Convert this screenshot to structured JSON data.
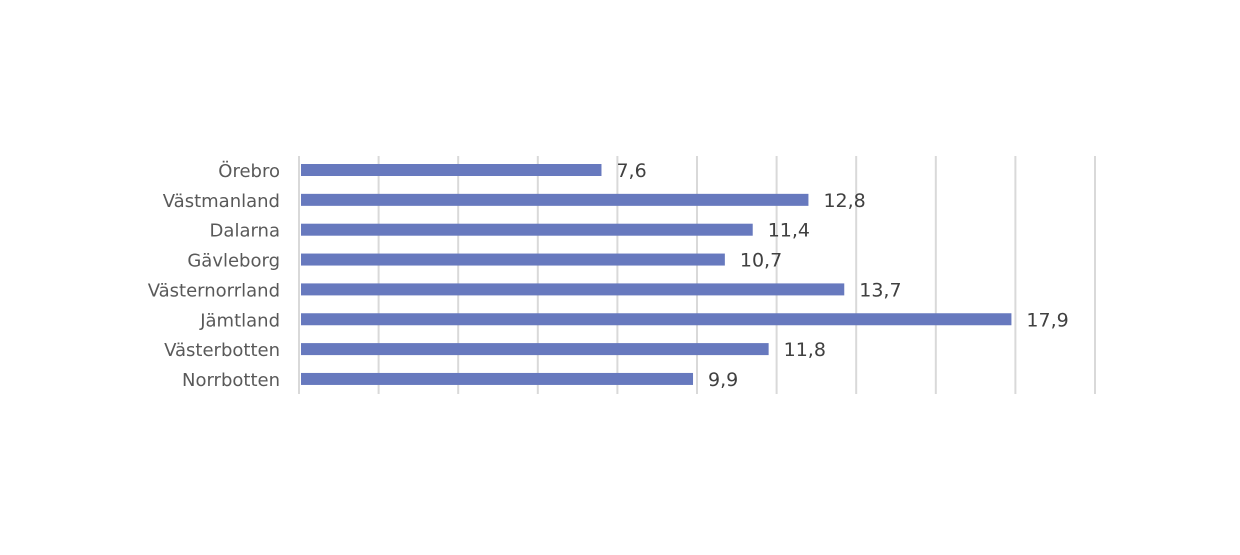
{
  "chart_data": {
    "type": "bar",
    "orientation": "horizontal",
    "title": "",
    "xlabel": "",
    "ylabel": "",
    "categories": [
      "Örebro",
      "Västmanland",
      "Dalarna",
      "Gävleborg",
      "Västernorrland",
      "Jämtland",
      "Västerbotten",
      "Norrbotten"
    ],
    "values": [
      7.6,
      12.8,
      11.4,
      10.7,
      13.7,
      17.9,
      11.8,
      9.9
    ],
    "value_labels": [
      "7,6",
      "12,8",
      "11,4",
      "10,7",
      "13,7",
      "17,9",
      "11,8",
      "9,9"
    ],
    "xlim": [
      0,
      20
    ],
    "gridlines": "vertical",
    "legend": "none",
    "bar_color": "#6779BE",
    "gridline_color": "#D9D9D9"
  }
}
